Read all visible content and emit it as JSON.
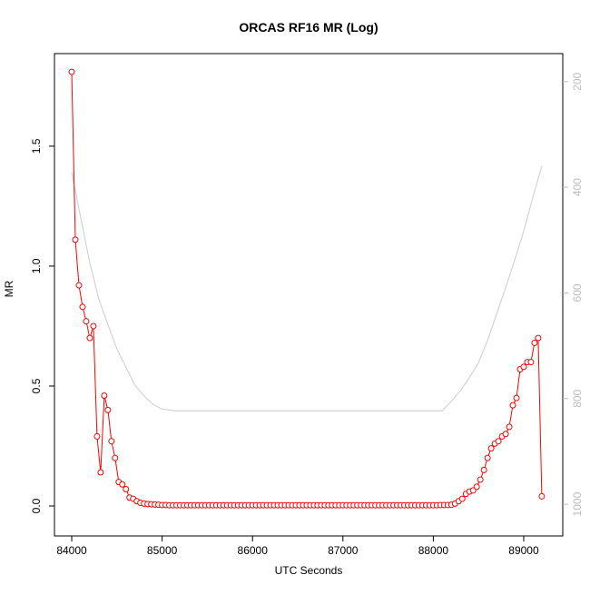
{
  "chart_data": {
    "type": "line",
    "title": "ORCAS RF16 MR (Log)",
    "xlabel": "UTC Seconds",
    "ylabel": "MR",
    "xlim": [
      83809,
      89432
    ],
    "ylim": [
      -0.125,
      1.886
    ],
    "y2lim": [
      1060,
      147
    ],
    "xticks": [
      84000,
      85000,
      86000,
      87000,
      88000,
      89000
    ],
    "yticks": [
      {
        "value": 0,
        "label": "0.0"
      },
      0.5,
      {
        "value": 1,
        "label": "1.0"
      },
      1.5
    ],
    "y2ticks": [
      200,
      400,
      600,
      800,
      1000
    ],
    "series": [
      {
        "color": "#ff0000",
        "markers": true,
        "x": [
          84000,
          84040,
          84080,
          84120,
          84160,
          84200,
          84240,
          84280,
          84320,
          84360,
          84400,
          84440,
          84480,
          84520,
          84560,
          84600,
          84640,
          84680,
          84720,
          84760,
          84800,
          84840,
          84880,
          84920,
          84960,
          85000,
          85040,
          85080,
          85120,
          85160,
          85200,
          85240,
          85280,
          85320,
          85360,
          85400,
          85440,
          85480,
          85520,
          85560,
          85600,
          85640,
          85680,
          85720,
          85760,
          85800,
          85840,
          85880,
          85920,
          85960,
          86000,
          86040,
          86080,
          86120,
          86160,
          86200,
          86240,
          86280,
          86320,
          86360,
          86400,
          86440,
          86480,
          86520,
          86560,
          86600,
          86640,
          86680,
          86720,
          86760,
          86800,
          86840,
          86880,
          86920,
          86960,
          87000,
          87040,
          87080,
          87120,
          87160,
          87200,
          87240,
          87280,
          87320,
          87360,
          87400,
          87440,
          87480,
          87520,
          87560,
          87600,
          87640,
          87680,
          87720,
          87760,
          87800,
          87840,
          87880,
          87920,
          87960,
          88000,
          88040,
          88080,
          88120,
          88160,
          88200,
          88240,
          88280,
          88320,
          88360,
          88400,
          88440,
          88480,
          88520,
          88560,
          88600,
          88640,
          88680,
          88720,
          88760,
          88800,
          88840,
          88880,
          88920,
          88960,
          89000,
          89040,
          89080,
          89120,
          89160,
          89200
        ],
        "values": [
          1.81,
          1.11,
          0.92,
          0.83,
          0.77,
          0.7,
          0.75,
          0.29,
          0.14,
          0.46,
          0.4,
          0.27,
          0.2,
          0.1,
          0.09,
          0.07,
          0.035,
          0.03,
          0.02,
          0.013,
          0.01,
          0.008,
          0.007,
          0.006,
          0.005,
          0.004,
          0.004,
          0.003,
          0.003,
          0.003,
          0.003,
          0.003,
          0.003,
          0.003,
          0.003,
          0.003,
          0.003,
          0.003,
          0.003,
          0.003,
          0.003,
          0.003,
          0.003,
          0.003,
          0.003,
          0.003,
          0.003,
          0.003,
          0.003,
          0.003,
          0.003,
          0.003,
          0.003,
          0.003,
          0.003,
          0.003,
          0.003,
          0.003,
          0.003,
          0.003,
          0.003,
          0.003,
          0.003,
          0.003,
          0.003,
          0.003,
          0.003,
          0.003,
          0.003,
          0.003,
          0.003,
          0.003,
          0.003,
          0.003,
          0.003,
          0.003,
          0.003,
          0.003,
          0.003,
          0.003,
          0.003,
          0.003,
          0.003,
          0.003,
          0.003,
          0.003,
          0.003,
          0.003,
          0.003,
          0.003,
          0.003,
          0.003,
          0.003,
          0.003,
          0.003,
          0.003,
          0.003,
          0.003,
          0.003,
          0.003,
          0.003,
          0.003,
          0.004,
          0.004,
          0.004,
          0.005,
          0.01,
          0.02,
          0.03,
          0.05,
          0.06,
          0.065,
          0.08,
          0.11,
          0.15,
          0.2,
          0.24,
          0.26,
          0.27,
          0.29,
          0.3,
          0.33,
          0.42,
          0.45,
          0.57,
          0.58,
          0.6,
          0.6,
          0.68,
          0.7,
          0.04
        ]
      },
      {
        "color": "#cccccc",
        "axis": "y2",
        "markers": false,
        "x": [
          84000,
          84100,
          84200,
          84300,
          84400,
          84500,
          84600,
          84700,
          84800,
          84900,
          85000,
          85150,
          88100,
          88200,
          88300,
          88400,
          88500,
          88600,
          88700,
          88800,
          88900,
          89000,
          89100,
          89200
        ],
        "values": [
          372,
          458,
          543,
          612,
          660,
          706,
          741,
          775,
          795,
          811,
          820,
          823,
          823,
          805,
          785,
          760,
          732,
          690,
          640,
          590,
          538,
          483,
          420,
          360
        ]
      }
    ]
  }
}
